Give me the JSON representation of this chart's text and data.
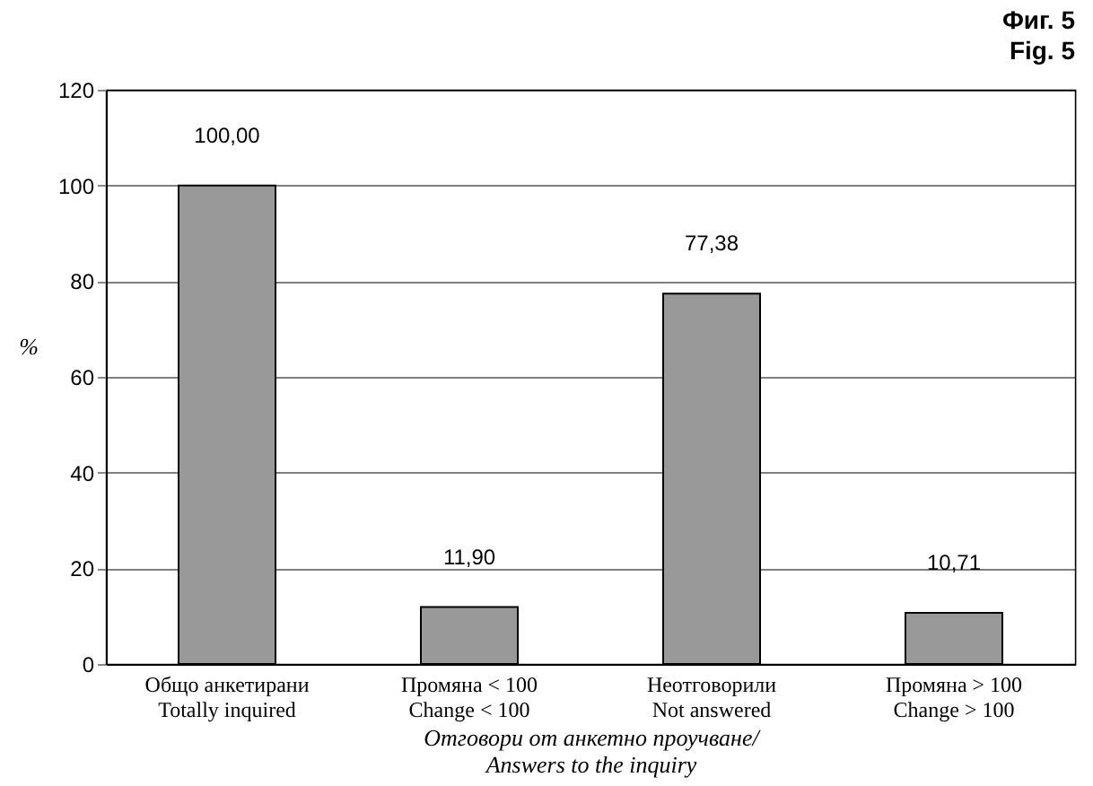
{
  "chart_data": {
    "type": "bar",
    "title": "Фиг. 5",
    "subtitle": "Fig. 5",
    "categories": [
      "Общо анкетирани\nTotally inquired",
      "Промяна < 100\nChange  < 100",
      "Неотговорили\nNot answered",
      "Промяна > 100\nChange  > 100"
    ],
    "values": [
      100.0,
      11.9,
      77.38,
      10.71
    ],
    "value_labels": [
      "100,00",
      "11,90",
      "77,38",
      "10,71"
    ],
    "color": "#999999",
    "xlabel": "Отговори от анкетно проучване/\nAnswers to the inquiry",
    "ylabel": "%",
    "ylim": [
      0,
      120
    ],
    "yticks": [
      0,
      20,
      40,
      60,
      80,
      100,
      120
    ],
    "grid": "y"
  }
}
